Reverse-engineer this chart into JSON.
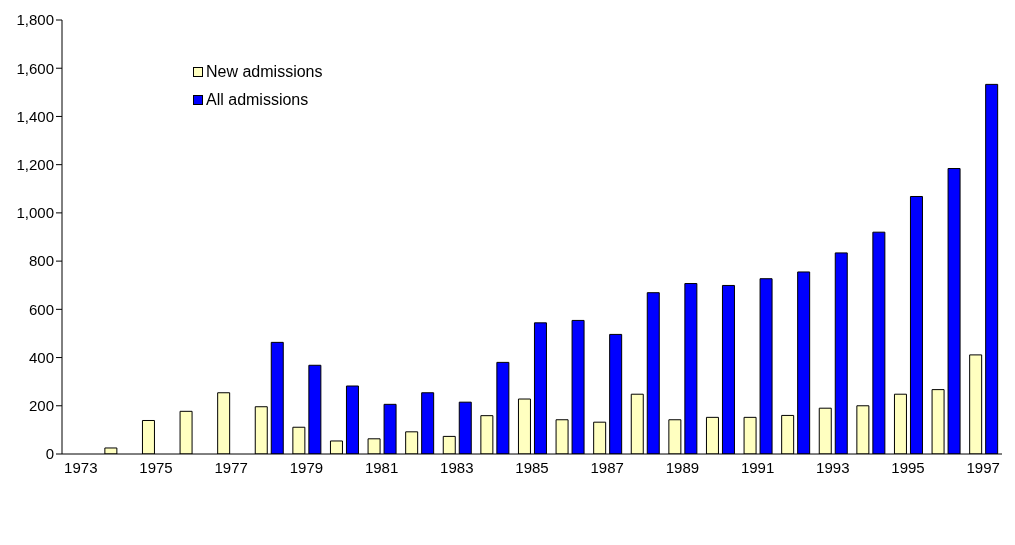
{
  "chart_data": {
    "type": "bar",
    "categories": [
      "1973",
      null,
      "1975",
      null,
      "1977",
      null,
      "1979",
      null,
      "1981",
      null,
      "1983",
      null,
      "1985",
      null,
      "1987",
      null,
      "1989",
      null,
      "1991",
      null,
      "1993",
      null,
      "1995",
      null,
      "1997"
    ],
    "series": [
      {
        "name": "New admissions",
        "color": "#ffffc0",
        "values": [
          null,
          25,
          139,
          177,
          254,
          196,
          111,
          54,
          63,
          92,
          73,
          159,
          228,
          142,
          132,
          248,
          142,
          152,
          152,
          160,
          190,
          200,
          248,
          267,
          411
        ]
      },
      {
        "name": "All admissions",
        "color": "#0000ff",
        "values": [
          null,
          null,
          null,
          null,
          null,
          463,
          368,
          282,
          206,
          254,
          215,
          380,
          544,
          554,
          496,
          669,
          707,
          699,
          727,
          755,
          834,
          920,
          1068,
          1184,
          1533
        ]
      }
    ],
    "ylim": [
      0,
      1800
    ],
    "yticks": [
      {
        "value": 0,
        "label": "0"
      },
      {
        "value": 200,
        "label": "200"
      },
      {
        "value": 400,
        "label": "400"
      },
      {
        "value": 600,
        "label": "600"
      },
      {
        "value": 800,
        "label": "800"
      },
      {
        "value": 1000,
        "label": "1,000"
      },
      {
        "value": 1200,
        "label": "1,200"
      },
      {
        "value": 1400,
        "label": "1,400"
      },
      {
        "value": 1600,
        "label": "1,600"
      },
      {
        "value": 1800,
        "label": "1,800"
      }
    ],
    "grid": false,
    "legend": "top left"
  }
}
